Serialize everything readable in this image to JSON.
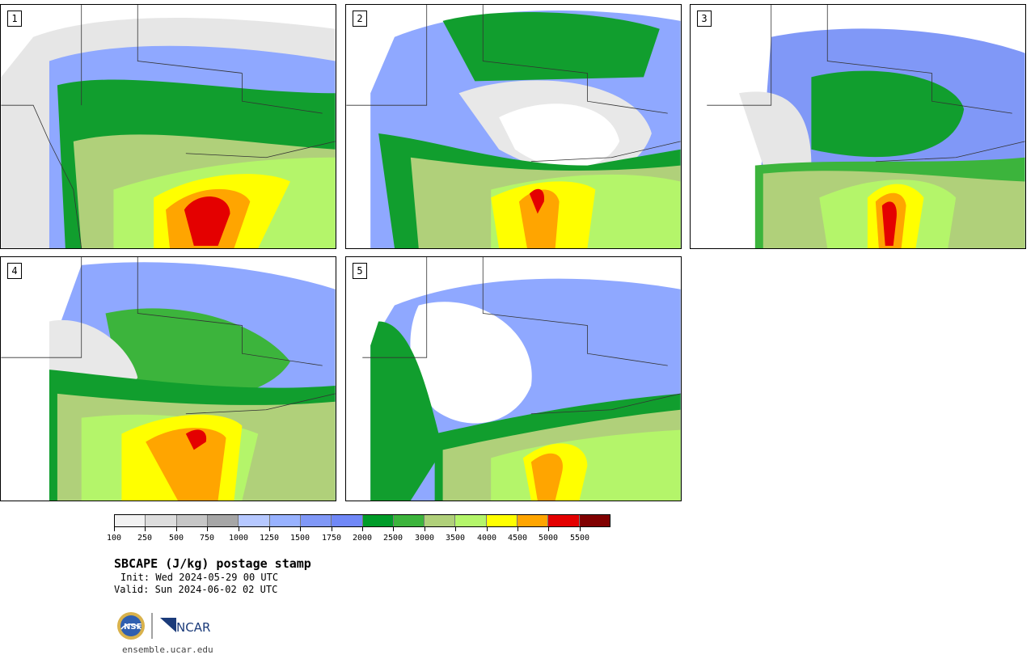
{
  "panels": [
    {
      "label": "1",
      "scene": "p1"
    },
    {
      "label": "2",
      "scene": "p2"
    },
    {
      "label": "3",
      "scene": "p3"
    },
    {
      "label": "4",
      "scene": "p4"
    },
    {
      "label": "5",
      "scene": "p5"
    }
  ],
  "colorbar": {
    "levels": [
      "100",
      "250",
      "500",
      "750",
      "1000",
      "1250",
      "1500",
      "1750",
      "2000",
      "2500",
      "3000",
      "3500",
      "4000",
      "4500",
      "5000",
      "5500"
    ],
    "colors": [
      "#f2f2f2",
      "#dddddd",
      "#c6c6c6",
      "#a6a6a6",
      "#b6c8ff",
      "#98b2ff",
      "#8098f7",
      "#7088f7",
      "#009c29",
      "#3cb43c",
      "#b0d07a",
      "#b4f56a",
      "#ffff00",
      "#ffa500",
      "#e40000",
      "#800000"
    ]
  },
  "title": "SBCAPE (J/kg) postage stamp",
  "init": "Init: Wed 2024-05-29 00 UTC",
  "valid": "Valid: Sun 2024-06-02 02 UTC",
  "logos": {
    "nsf": "NSF",
    "ncar": "NCAR"
  },
  "url": "ensemble.ucar.edu"
}
